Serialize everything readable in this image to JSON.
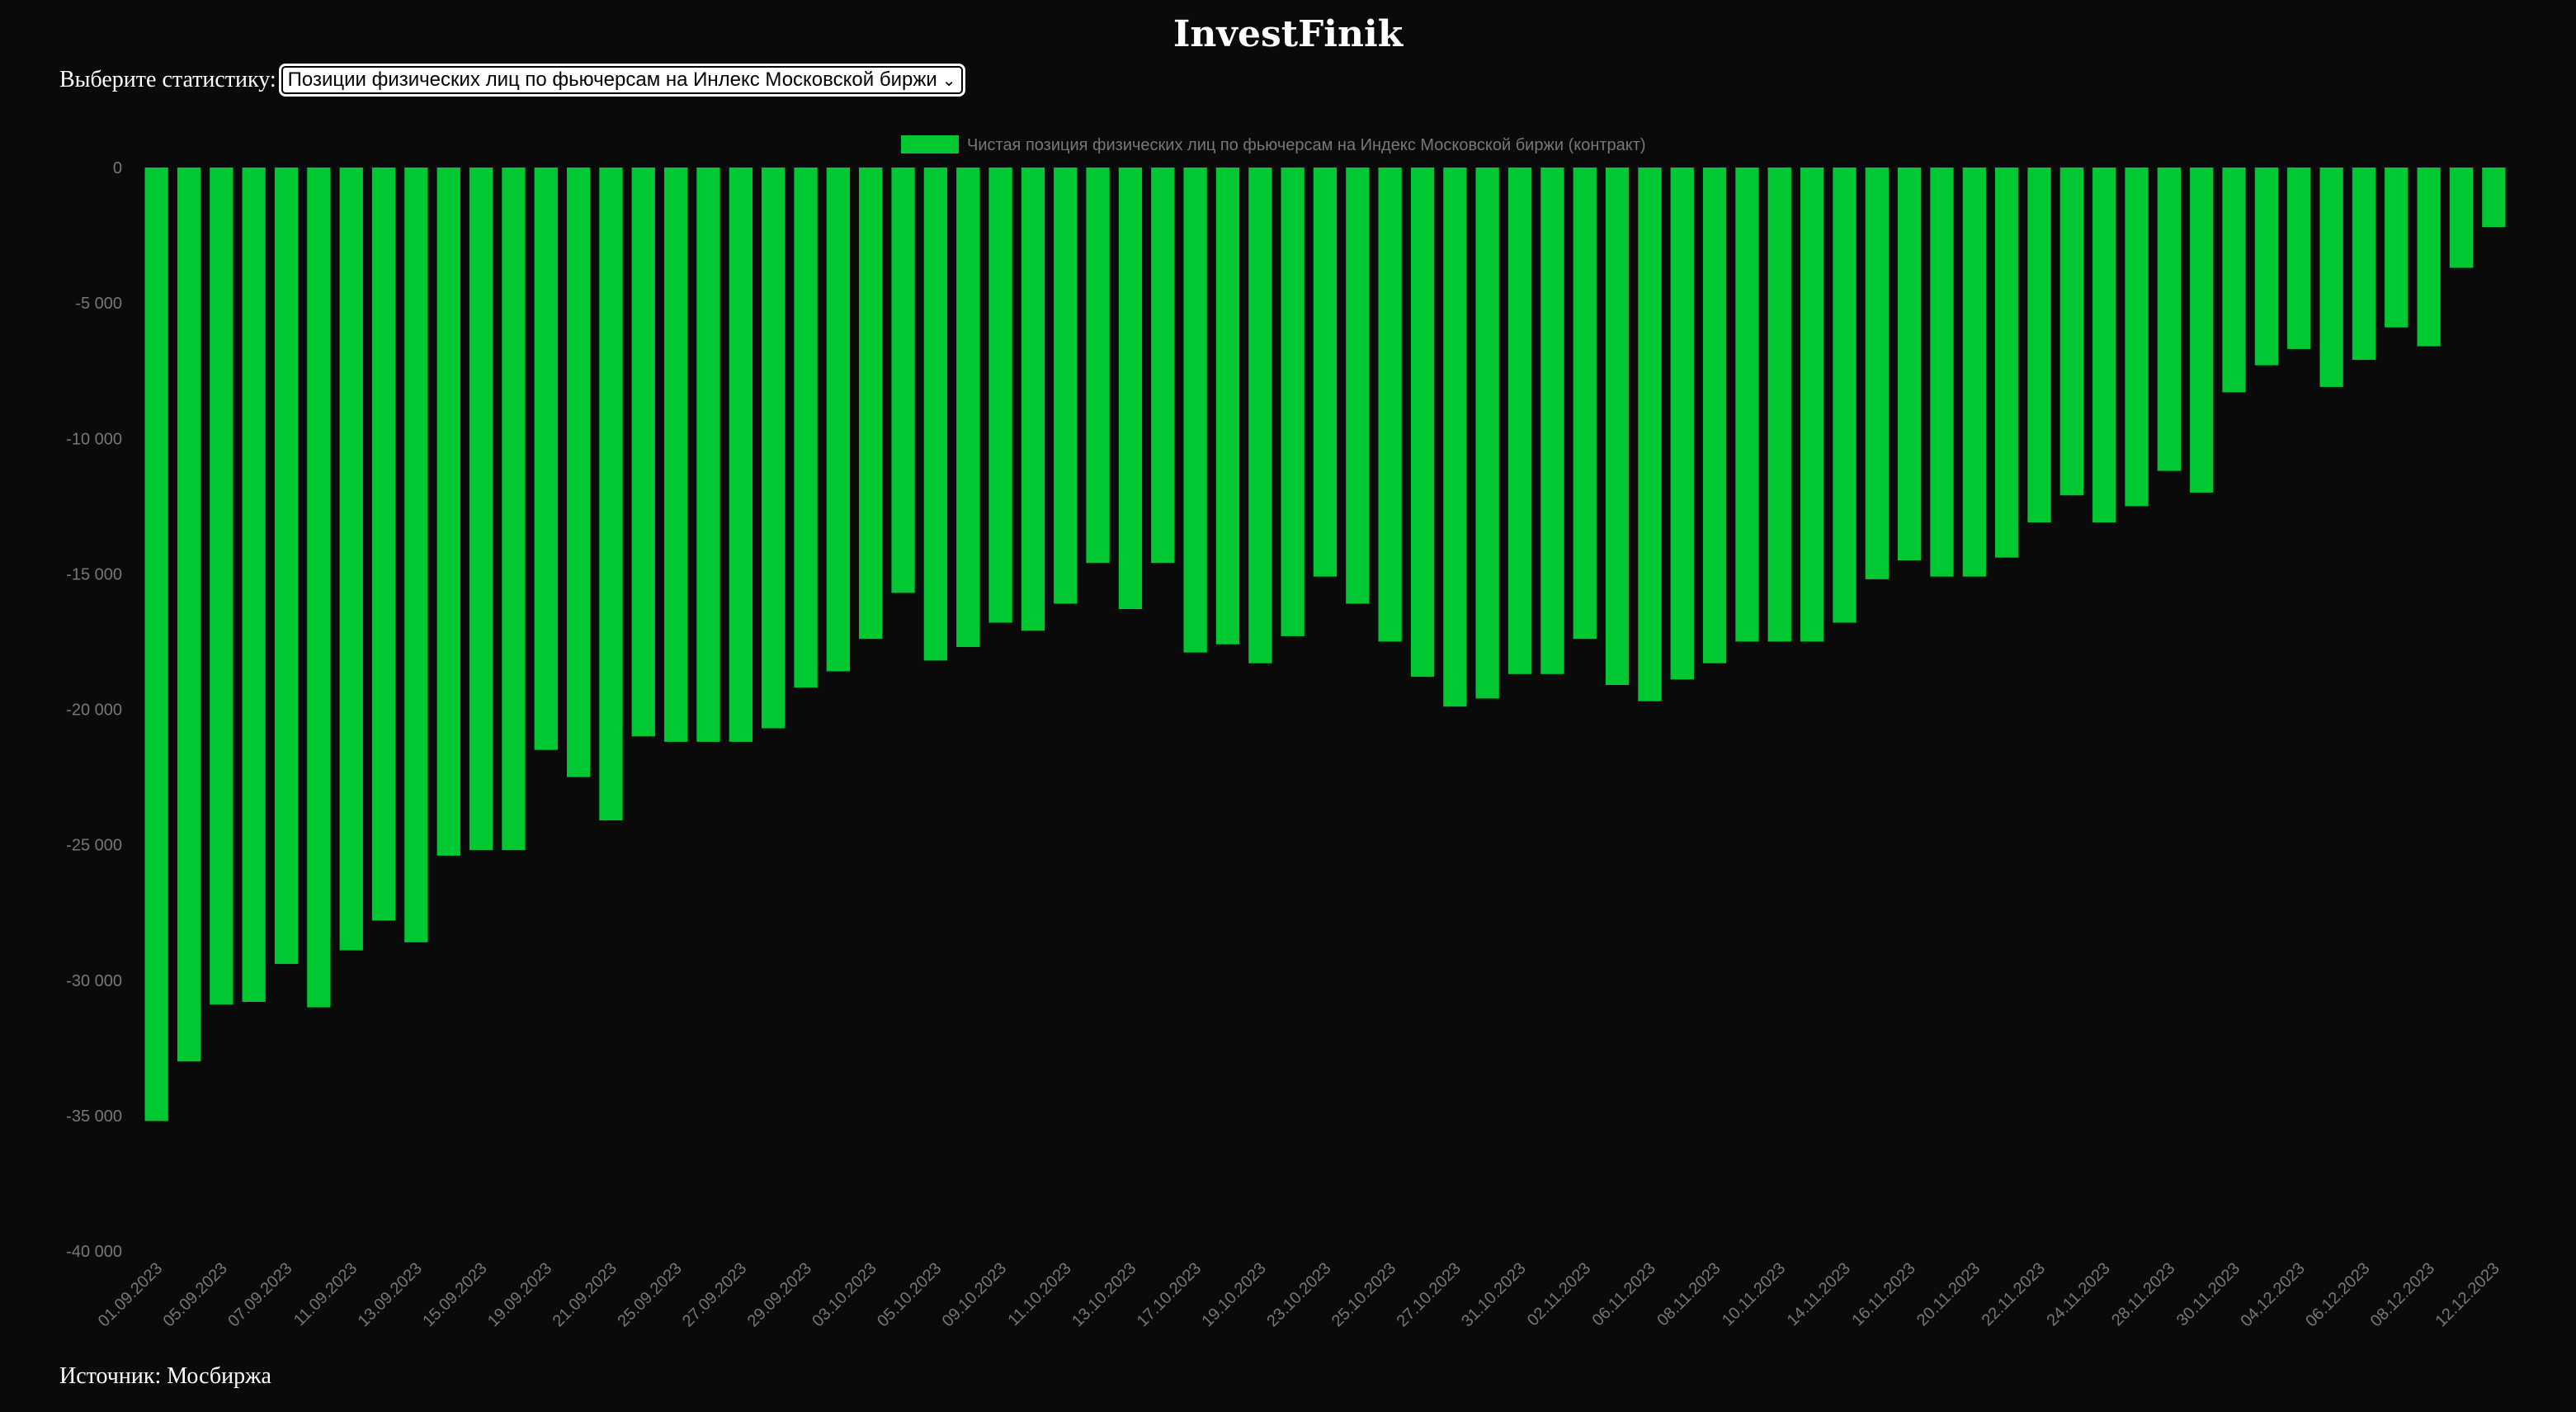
{
  "header": {
    "title": "InvestFinik"
  },
  "selector": {
    "label": "Выберите статистику:",
    "selected": "Позиции физических лиц по фьючерсам на Инлекс Московской биржи"
  },
  "footer": {
    "source": "Источник: Мосбиржа"
  },
  "chart_data": {
    "type": "bar",
    "legend": {
      "label": "Чистая позиция физических лиц по фьючерсам на Индекс Московской биржи (контракт)",
      "placement": "top-center"
    },
    "colors": {
      "bar": "#00c832",
      "axis_text": "#777777",
      "background": "#0a0a0a"
    },
    "grid": false,
    "ylim": [
      -40000,
      0
    ],
    "yticks": [
      0,
      -5000,
      -10000,
      -15000,
      -20000,
      -25000,
      -30000,
      -35000,
      -40000
    ],
    "ytick_labels": [
      "0",
      "-5 000",
      "-10 000",
      "-15 000",
      "-20 000",
      "-25 000",
      "-30 000",
      "-35 000",
      "-40 000"
    ],
    "xtick_labels": [
      "01.09.2023",
      "05.09.2023",
      "07.09.2023",
      "11.09.2023",
      "13.09.2023",
      "15.09.2023",
      "19.09.2023",
      "21.09.2023",
      "25.09.2023",
      "27.09.2023",
      "29.09.2023",
      "03.10.2023",
      "05.10.2023",
      "09.10.2023",
      "11.10.2023",
      "13.10.2023",
      "17.10.2023",
      "19.10.2023",
      "23.10.2023",
      "25.10.2023",
      "27.10.2023",
      "31.10.2023",
      "02.11.2023",
      "06.11.2023",
      "08.11.2023",
      "10.11.2023",
      "14.11.2023",
      "16.11.2023",
      "20.11.2023",
      "22.11.2023",
      "24.11.2023",
      "28.11.2023",
      "30.11.2023",
      "04.12.2023",
      "06.12.2023",
      "08.12.2023",
      "12.12.2023"
    ],
    "values": [
      -35200,
      -33000,
      -30900,
      -30800,
      -29400,
      -31000,
      -28900,
      -27800,
      -28600,
      -25400,
      -25200,
      -25200,
      -21500,
      -22500,
      -24100,
      -21000,
      -21200,
      -21200,
      -21200,
      -20700,
      -19200,
      -18600,
      -17400,
      -15700,
      -18200,
      -17700,
      -16800,
      -17100,
      -16100,
      -14600,
      -16300,
      -14600,
      -17900,
      -17600,
      -18300,
      -17300,
      -15100,
      -16100,
      -17500,
      -18800,
      -19900,
      -19600,
      -18700,
      -18700,
      -17400,
      -19100,
      -19700,
      -18900,
      -18300,
      -17500,
      -17500,
      -17500,
      -16800,
      -15200,
      -14500,
      -15100,
      -15100,
      -14400,
      -13100,
      -12100,
      -13100,
      -12500,
      -11200,
      -12000,
      -8300,
      -7300,
      -6700,
      -8100,
      -7100,
      -5900,
      -6600,
      -3700,
      -2200
    ]
  }
}
